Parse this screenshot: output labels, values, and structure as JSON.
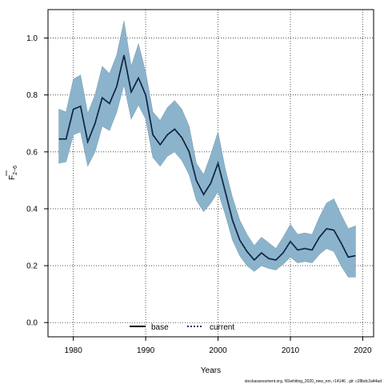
{
  "chart_data": {
    "type": "line",
    "title": "",
    "xlabel": "Years",
    "ylabel_main": "F",
    "ylabel_sub": "2−6",
    "xlim": [
      1976.5,
      2021.5
    ],
    "ylim": [
      -0.05,
      1.1
    ],
    "x_ticks": [
      1980,
      1990,
      2000,
      2010,
      2020
    ],
    "y_ticks": [
      0.0,
      0.2,
      0.4,
      0.6,
      0.8,
      1.0
    ],
    "y_tick_labels": [
      "0.0",
      "0.2",
      "0.4",
      "0.6",
      "0.8",
      "1.0"
    ],
    "grid": true,
    "x": [
      1978,
      1979,
      1980,
      1981,
      1982,
      1983,
      1984,
      1985,
      1986,
      1987,
      1988,
      1989,
      1990,
      1991,
      1992,
      1993,
      1994,
      1995,
      1996,
      1997,
      1998,
      1999,
      2000,
      2001,
      2002,
      2003,
      2004,
      2005,
      2006,
      2007,
      2008,
      2009,
      2010,
      2011,
      2012,
      2013,
      2014,
      2015,
      2016,
      2017,
      2018,
      2019
    ],
    "series": [
      {
        "name": "base",
        "style": "solid",
        "color": "#000000",
        "values": [
          0.645,
          0.645,
          0.75,
          0.76,
          0.635,
          0.7,
          0.79,
          0.77,
          0.83,
          0.94,
          0.81,
          0.86,
          0.8,
          0.66,
          0.625,
          0.66,
          0.68,
          0.65,
          0.6,
          0.5,
          0.45,
          0.49,
          0.56,
          0.46,
          0.36,
          0.29,
          0.25,
          0.22,
          0.245,
          0.225,
          0.22,
          0.245,
          0.285,
          0.255,
          0.26,
          0.255,
          0.3,
          0.33,
          0.325,
          0.28,
          0.23,
          0.235
        ]
      },
      {
        "name": "current",
        "style": "dotted",
        "color": "#1a3b6e",
        "values": [
          0.645,
          0.645,
          0.75,
          0.76,
          0.635,
          0.7,
          0.79,
          0.77,
          0.83,
          0.94,
          0.81,
          0.86,
          0.8,
          0.66,
          0.625,
          0.66,
          0.68,
          0.65,
          0.6,
          0.5,
          0.45,
          0.49,
          0.56,
          0.46,
          0.36,
          0.29,
          0.25,
          0.22,
          0.245,
          0.225,
          0.22,
          0.245,
          0.285,
          0.255,
          0.26,
          0.255,
          0.3,
          0.33,
          0.325,
          0.28,
          0.23,
          0.235
        ]
      }
    ],
    "band": {
      "color": "#8bb4cc",
      "upper": [
        0.75,
        0.74,
        0.855,
        0.87,
        0.735,
        0.8,
        0.9,
        0.875,
        0.94,
        1.06,
        0.9,
        0.98,
        0.88,
        0.74,
        0.71,
        0.755,
        0.78,
        0.75,
        0.69,
        0.56,
        0.52,
        0.59,
        0.67,
        0.54,
        0.44,
        0.36,
        0.31,
        0.27,
        0.3,
        0.28,
        0.26,
        0.3,
        0.345,
        0.31,
        0.315,
        0.31,
        0.37,
        0.42,
        0.435,
        0.38,
        0.33,
        0.34
      ],
      "lower": [
        0.56,
        0.565,
        0.66,
        0.67,
        0.55,
        0.6,
        0.69,
        0.675,
        0.74,
        0.835,
        0.715,
        0.765,
        0.715,
        0.58,
        0.55,
        0.585,
        0.6,
        0.57,
        0.52,
        0.43,
        0.39,
        0.42,
        0.46,
        0.38,
        0.29,
        0.235,
        0.2,
        0.18,
        0.2,
        0.19,
        0.185,
        0.205,
        0.23,
        0.21,
        0.215,
        0.21,
        0.24,
        0.26,
        0.25,
        0.2,
        0.16,
        0.16
      ]
    },
    "legend": {
      "placement": "bottom-center",
      "entries": [
        {
          "label": "base",
          "style": "solid"
        },
        {
          "label": "current",
          "style": "dotted"
        }
      ]
    },
    "footer": "stockassessment.org, NSwhiting_2020_new_nm, r14146 , git: c28bdc2a44ad"
  }
}
